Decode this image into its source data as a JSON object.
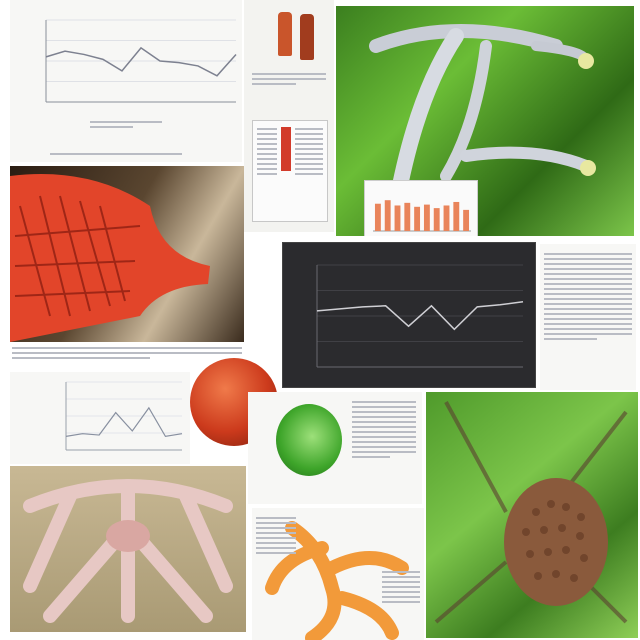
{
  "collage": {
    "tiles": [
      {
        "name": "top-left-line-chart-page",
        "kind": "chart-page"
      },
      {
        "name": "specimen-bottle-page",
        "kind": "document"
      },
      {
        "name": "green-plant-photo-with-bar-chart",
        "kind": "photo"
      },
      {
        "name": "red-coral-structure-photo",
        "kind": "photo"
      },
      {
        "name": "dark-line-chart-panel",
        "kind": "chart"
      },
      {
        "name": "small-line-chart-page",
        "kind": "chart-page"
      },
      {
        "name": "red-sphere-specimen",
        "kind": "photo"
      },
      {
        "name": "green-cabbage-illustration",
        "kind": "illustration"
      },
      {
        "name": "pink-skeleton-photo",
        "kind": "photo"
      },
      {
        "name": "orange-branch-sculpture",
        "kind": "photo"
      },
      {
        "name": "brown-seed-pod-photo",
        "kind": "photo"
      }
    ],
    "colors": {
      "paper": "#f7f7f5",
      "text_lines": "#b9bcc4",
      "chart_dark": "#2b2b2e",
      "green": "#4f9a2b",
      "coral": "#e2452a",
      "orange": "#f29a3a",
      "bone": "#e7c8c4",
      "pod": "#8a5a3c"
    }
  },
  "chart_data": [
    {
      "type": "line",
      "x": [
        1,
        2,
        3,
        4,
        5,
        6,
        7,
        8,
        9,
        10,
        11
      ],
      "series": [
        {
          "values": [
            55,
            62,
            58,
            52,
            38,
            66,
            50,
            48,
            44,
            32,
            58
          ]
        }
      ],
      "ylim": [
        0,
        100
      ]
    },
    {
      "type": "bar",
      "categories": [
        "1",
        "2",
        "3",
        "4",
        "5",
        "6",
        "7",
        "8",
        "9",
        "10"
      ],
      "series": [
        {
          "values": [
            62,
            70,
            58,
            64,
            55,
            60,
            52,
            58,
            66,
            48
          ]
        }
      ],
      "ylim": [
        0,
        100
      ]
    },
    {
      "type": "line",
      "x": [
        1,
        2,
        3,
        4,
        5,
        6,
        7,
        8,
        9,
        10
      ],
      "series": [
        {
          "values": [
            55,
            57,
            59,
            60,
            40,
            60,
            37,
            59,
            61,
            64
          ]
        }
      ],
      "ylim": [
        0,
        100
      ]
    },
    {
      "type": "line",
      "x": [
        1,
        2,
        3,
        4,
        5,
        6,
        7,
        8
      ],
      "series": [
        {
          "values": [
            20,
            24,
            22,
            55,
            28,
            62,
            20,
            24
          ]
        }
      ],
      "ylim": [
        0,
        100
      ]
    }
  ]
}
